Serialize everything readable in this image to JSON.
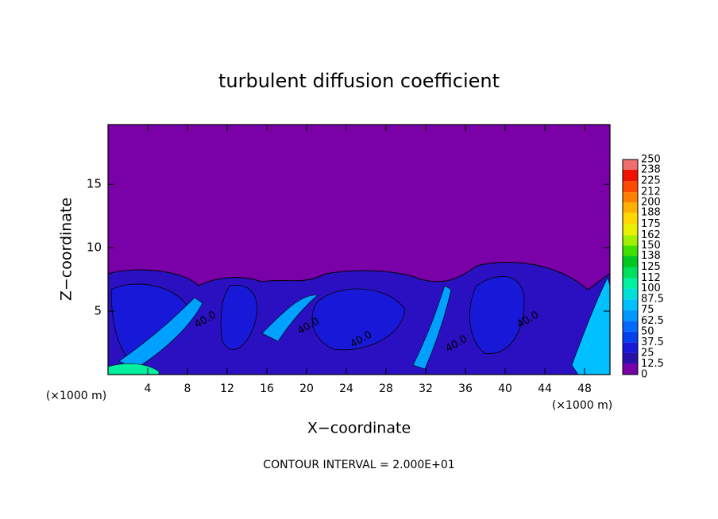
{
  "chart_data": {
    "type": "contour",
    "title": "turbulent diffusion coefficient",
    "xlabel": "X−coordinate",
    "ylabel": "Z−coordinate",
    "xunit": "(×1000 m)",
    "xunit2": "(×1000 m)",
    "footer": "CONTOUR INTERVAL = 2.000E+01",
    "xlim": [
      0,
      50.56
    ],
    "ylim": [
      0,
      19.7
    ],
    "xticks": [
      4,
      8,
      12,
      16,
      20,
      24,
      28,
      32,
      36,
      40,
      44,
      48
    ],
    "yticks": [
      5,
      10,
      15
    ],
    "colorbar": {
      "clim": [
        0,
        250
      ],
      "levels": [
        0,
        12.5,
        25,
        37.5,
        50,
        62.5,
        75,
        87.5,
        100,
        112,
        125,
        138,
        150,
        162,
        175,
        188,
        200,
        212,
        225,
        238,
        250
      ],
      "colors": [
        "#7a00a8",
        "#2a10a8",
        "#1818d8",
        "#0040f0",
        "#0068ff",
        "#0098ff",
        "#00c0ff",
        "#00e0d8",
        "#00f0a0",
        "#00e060",
        "#00c820",
        "#40e000",
        "#a0f000",
        "#e8f000",
        "#ffd800",
        "#ffb000",
        "#ff8000",
        "#ff4800",
        "#f01000",
        "#f07070"
      ]
    },
    "annotations": [
      {
        "text": "40.0",
        "x": 9.8,
        "y": 4.3
      },
      {
        "text": "40.0",
        "x": 20.2,
        "y": 3.8
      },
      {
        "text": "40.0",
        "x": 25.5,
        "y": 2.75
      },
      {
        "text": "40.0",
        "x": 35.1,
        "y": 2.4
      },
      {
        "text": "40.0",
        "x": 42.3,
        "y": 4.3
      }
    ]
  }
}
